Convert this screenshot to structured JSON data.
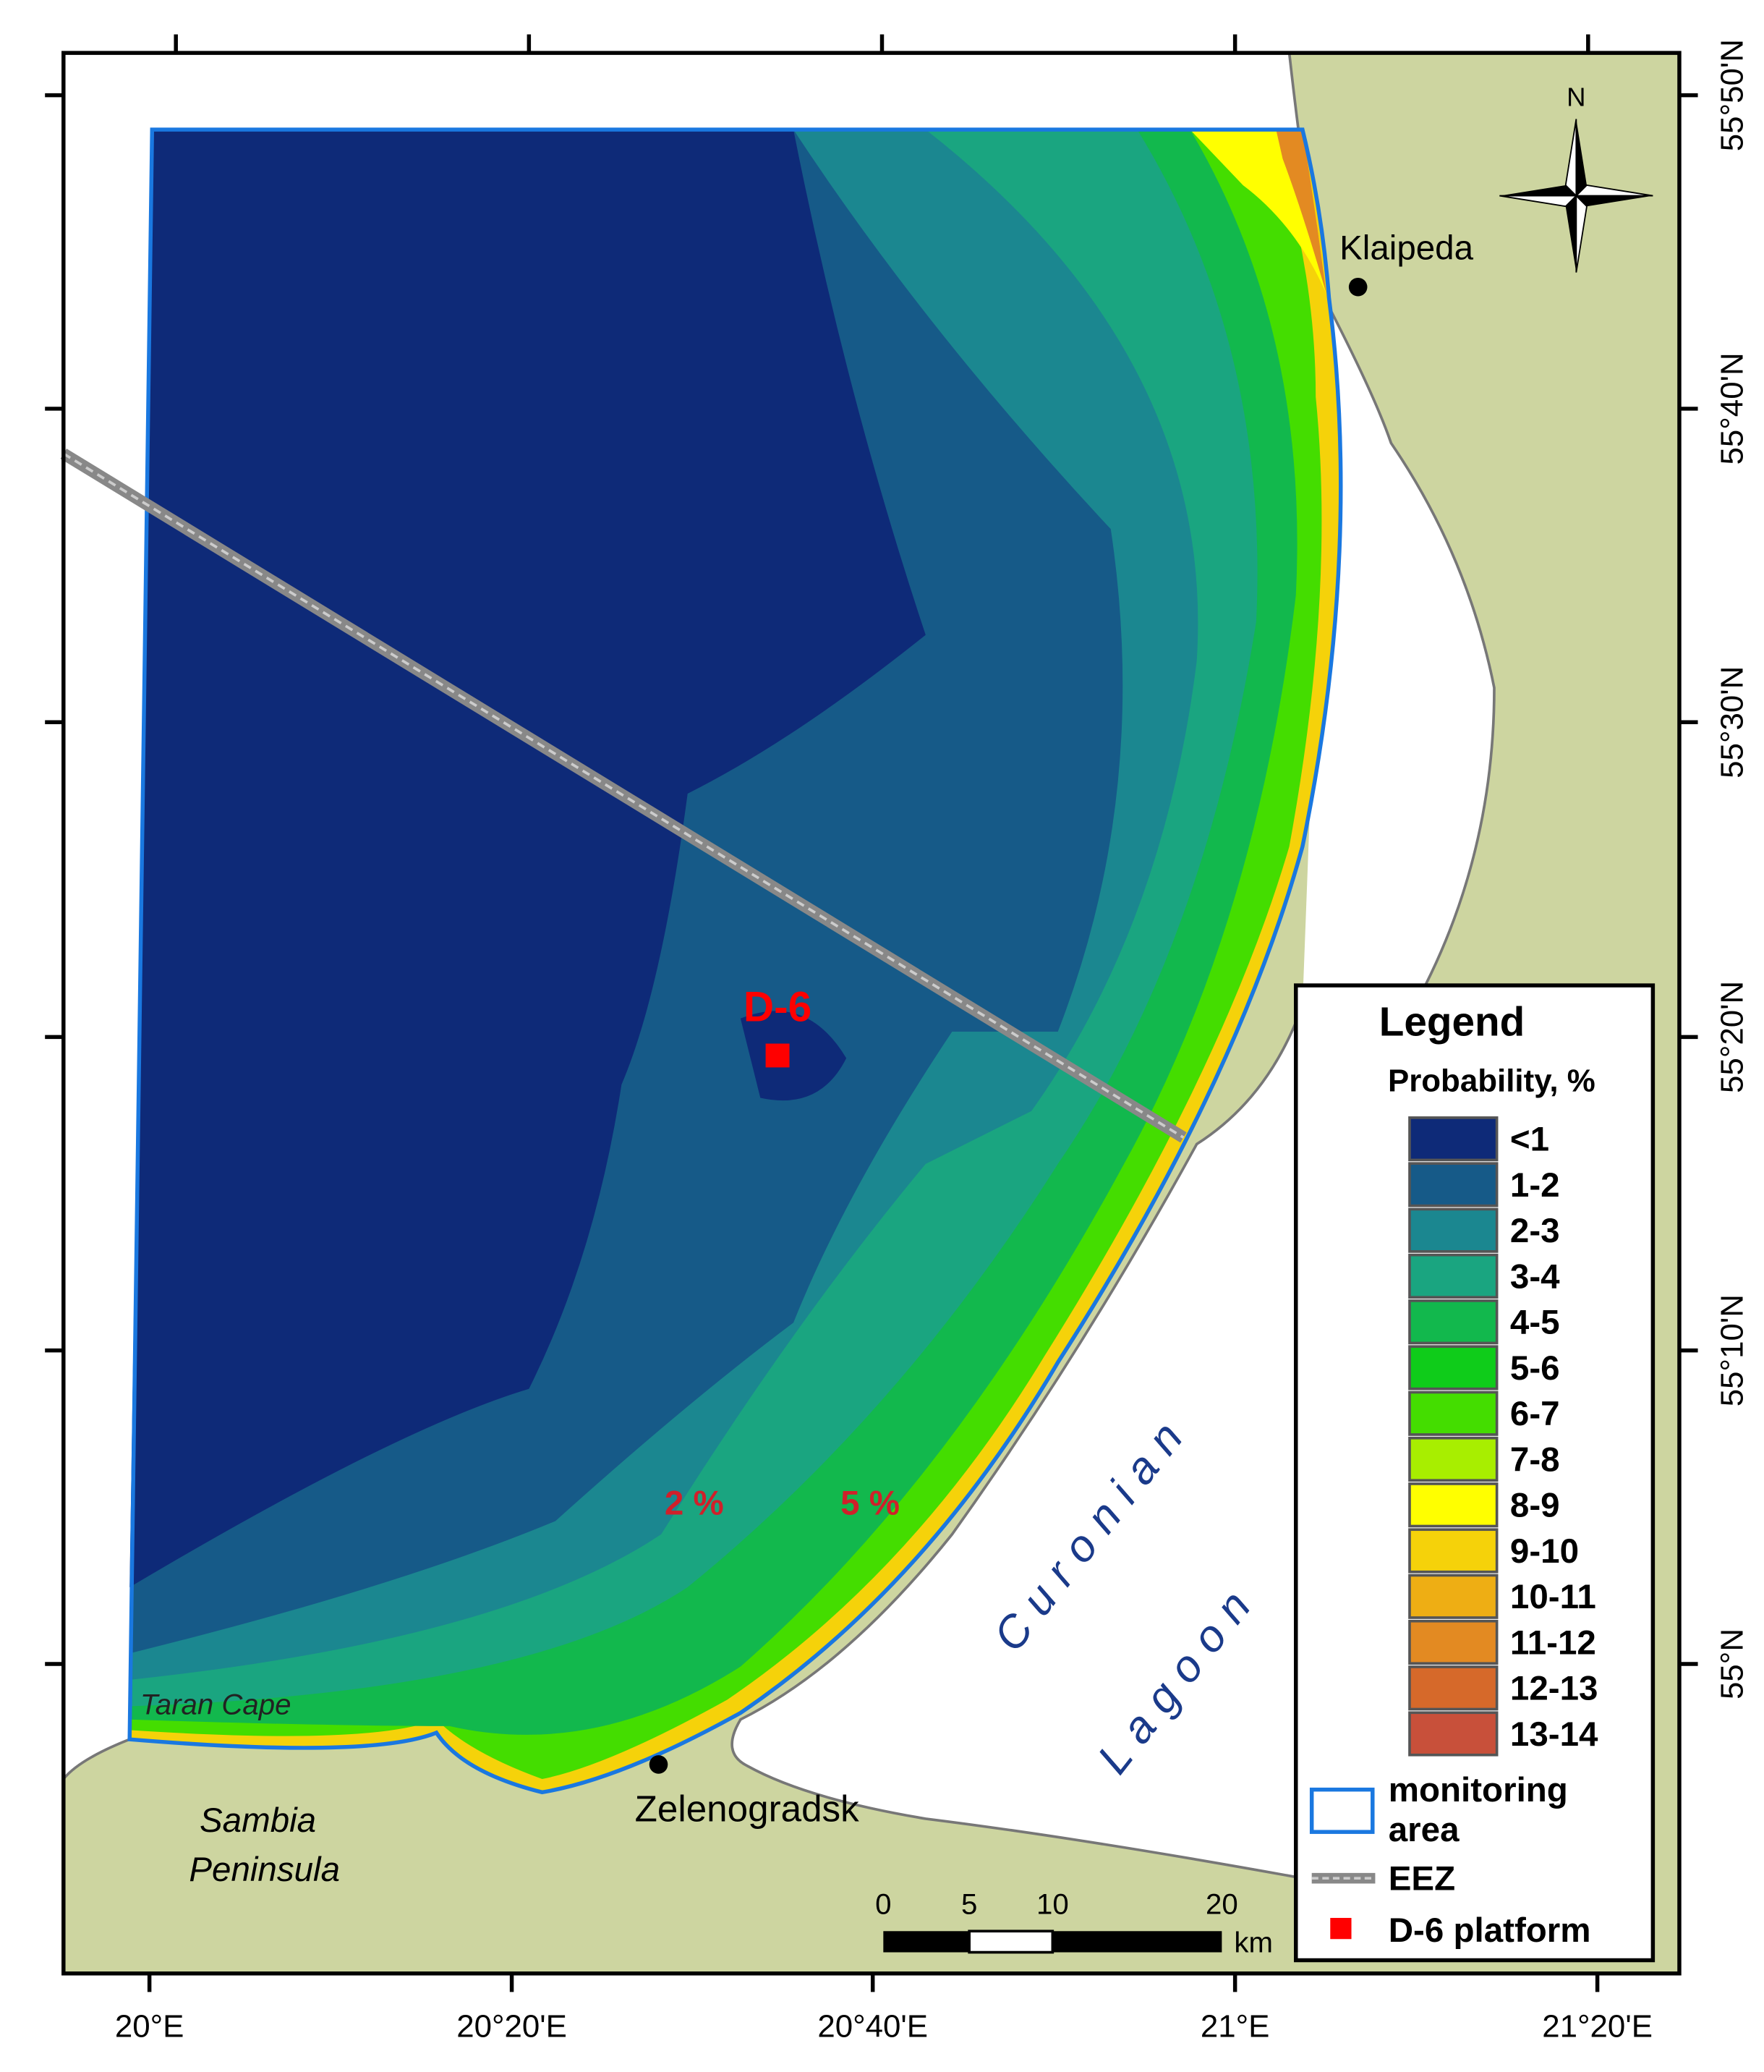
{
  "map": {
    "lat_labels": [
      "55°50'N",
      "55°40'N",
      "55°30'N",
      "55°20'N",
      "55°10'N",
      "55°N"
    ],
    "lon_labels": [
      "20°E",
      "20°20'E",
      "20°40'E",
      "21°E",
      "21°20'E"
    ],
    "north": "N",
    "places": {
      "klaipeda": "Klaipeda",
      "zelenogradsk": "Zelenogradsk",
      "taran": "Taran Cape",
      "sambia": [
        "Sambia",
        "Peninsula"
      ],
      "curonian": [
        "Curonian",
        "Lagoon"
      ]
    },
    "platform_label": "D-6",
    "contour_labels": [
      "2 %",
      "5 %"
    ],
    "legend": {
      "title": "Legend",
      "subtitle": "Probability, %",
      "classes": [
        {
          "label": "<1",
          "color": "#0e2a78"
        },
        {
          "label": "1-2",
          "color": "#165a88"
        },
        {
          "label": "2-3",
          "color": "#1b8790"
        },
        {
          "label": "3-4",
          "color": "#1aa580"
        },
        {
          "label": "4-5",
          "color": "#12b84d"
        },
        {
          "label": "5-6",
          "color": "#0fcc1a"
        },
        {
          "label": "6-7",
          "color": "#44dd00"
        },
        {
          "label": "7-8",
          "color": "#a8ee00"
        },
        {
          "label": "8-9",
          "color": "#ffff00"
        },
        {
          "label": "9-10",
          "color": "#f5d20a"
        },
        {
          "label": "10-11",
          "color": "#eeae14"
        },
        {
          "label": "11-12",
          "color": "#e38a22"
        },
        {
          "label": "12-13",
          "color": "#d6692a"
        },
        {
          "label": "13-14",
          "color": "#c8503a"
        }
      ],
      "monitoring": [
        "monitoring",
        "area"
      ],
      "eez": "EEZ",
      "platform": "D-6 platform"
    },
    "scale": {
      "ticks": [
        "0",
        "5",
        "10",
        "20"
      ],
      "unit": "km"
    }
  }
}
